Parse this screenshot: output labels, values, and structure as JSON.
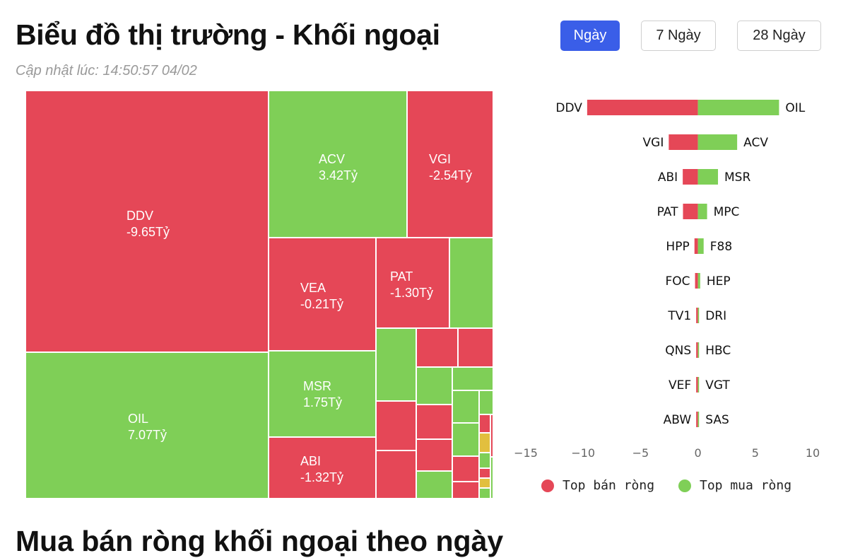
{
  "header": {
    "title": "Biểu đồ thị trường - Khối ngoại",
    "updated": "Cập nhật lúc: 14:50:57 04/02",
    "ranges": [
      {
        "label": "Ngày",
        "active": true
      },
      {
        "label": "7 Ngày",
        "active": false
      },
      {
        "label": "28 Ngày",
        "active": false
      }
    ]
  },
  "colors": {
    "sell": "#e54757",
    "buy": "#7fcf57",
    "neutral": "#e2bf3e",
    "axis": "#666666"
  },
  "treemap": {
    "labeled": [
      {
        "ticker": "DDV",
        "value": "-9.65Tỷ",
        "side": "sell"
      },
      {
        "ticker": "OIL",
        "value": "7.07Tỷ",
        "side": "buy"
      },
      {
        "ticker": "ACV",
        "value": "3.42Tỷ",
        "side": "buy"
      },
      {
        "ticker": "VGI",
        "value": "-2.54Tỷ",
        "side": "sell"
      },
      {
        "ticker": "VEA",
        "value": "-0.21Tỷ",
        "side": "sell"
      },
      {
        "ticker": "PAT",
        "value": "-1.30Tỷ",
        "side": "sell"
      },
      {
        "ticker": "MSR",
        "value": "1.75Tỷ",
        "side": "buy"
      },
      {
        "ticker": "ABI",
        "value": "-1.32Tỷ",
        "side": "sell"
      }
    ]
  },
  "chart_data": {
    "type": "bar",
    "orientation": "horizontal-diverging",
    "xlim": [
      -15,
      10
    ],
    "xticks": [
      -15,
      -10,
      -5,
      0,
      5,
      10
    ],
    "series": [
      {
        "name": "Top bán ròng",
        "labels": [
          "DDV",
          "VGI",
          "ABI",
          "PAT",
          "HPP",
          "FOC",
          "TV1",
          "QNS",
          "VEF",
          "ABW"
        ],
        "values": [
          -9.65,
          -2.54,
          -1.32,
          -1.3,
          -0.3,
          -0.25,
          -0.15,
          -0.15,
          -0.15,
          -0.15
        ]
      },
      {
        "name": "Top mua ròng",
        "labels": [
          "OIL",
          "ACV",
          "MSR",
          "MPC",
          "F88",
          "HEP",
          "DRI",
          "HBC",
          "VGT",
          "SAS"
        ],
        "values": [
          7.07,
          3.42,
          1.75,
          0.8,
          0.5,
          0.2,
          0.1,
          0.1,
          0.1,
          0.1
        ]
      }
    ]
  },
  "section": {
    "heading": "Mua bán ròng khối ngoại theo ngày"
  }
}
